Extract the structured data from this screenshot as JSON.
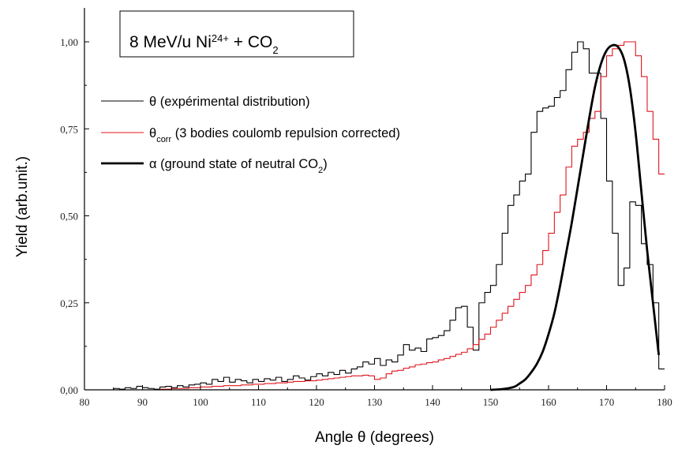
{
  "chart_data": {
    "type": "line",
    "title": {
      "prefix": "8 MeV/u Ni",
      "prefix_sup": "24+",
      "middle": " + CO",
      "middle_sub": "2"
    },
    "xlabel": "Angle θ (degrees)",
    "ylabel": "Yield (arb.unit.)",
    "xlim": [
      80,
      180
    ],
    "ylim": [
      0,
      1.0
    ],
    "x_ticks": [
      80,
      90,
      100,
      110,
      120,
      130,
      140,
      150,
      160,
      170,
      180
    ],
    "x_tick_labels": [
      "80",
      "90",
      "100",
      "110",
      "120",
      "130",
      "140",
      "150",
      "160",
      "170",
      "180"
    ],
    "y_ticks": [
      0,
      0.25,
      0.5,
      0.75,
      1.0
    ],
    "y_tick_labels": [
      "0,00",
      "0,25",
      "0,50",
      "0,75",
      "1,00"
    ],
    "grid": false,
    "legend_position": "left-upper",
    "series": [
      {
        "key": "theta",
        "color": "#000000",
        "style": "step",
        "legend": {
          "symbol": "θ",
          "sub": "",
          "text": " (expérimental distribution)"
        },
        "x": [
          80,
          81,
          82,
          83,
          84,
          85,
          86,
          87,
          88,
          89,
          90,
          91,
          92,
          93,
          94,
          95,
          96,
          97,
          98,
          99,
          100,
          101,
          102,
          103,
          104,
          105,
          106,
          107,
          108,
          109,
          110,
          111,
          112,
          113,
          114,
          115,
          116,
          117,
          118,
          119,
          120,
          121,
          122,
          123,
          124,
          125,
          126,
          127,
          128,
          129,
          130,
          131,
          132,
          133,
          134,
          135,
          136,
          137,
          138,
          139,
          140,
          141,
          142,
          143,
          144,
          145,
          146,
          147,
          148,
          149,
          150,
          151,
          152,
          153,
          154,
          155,
          156,
          157,
          158,
          159,
          160,
          161,
          162,
          163,
          164,
          165,
          166,
          167,
          168,
          169,
          170,
          171,
          172,
          173,
          174,
          175,
          176,
          177,
          178,
          179
        ],
        "y": [
          0.0,
          0.0,
          0.0,
          0.0,
          0.0,
          0.004,
          0.002,
          0.006,
          0.004,
          0.01,
          0.006,
          0.004,
          0.002,
          0.008,
          0.01,
          0.006,
          0.012,
          0.008,
          0.014,
          0.016,
          0.02,
          0.016,
          0.03,
          0.024,
          0.036,
          0.022,
          0.03,
          0.026,
          0.02,
          0.03,
          0.024,
          0.032,
          0.028,
          0.036,
          0.024,
          0.03,
          0.04,
          0.034,
          0.028,
          0.038,
          0.046,
          0.04,
          0.05,
          0.044,
          0.056,
          0.048,
          0.06,
          0.066,
          0.08,
          0.074,
          0.09,
          0.07,
          0.086,
          0.08,
          0.1,
          0.13,
          0.114,
          0.12,
          0.11,
          0.146,
          0.15,
          0.156,
          0.17,
          0.2,
          0.236,
          0.24,
          0.18,
          0.114,
          0.25,
          0.28,
          0.3,
          0.36,
          0.45,
          0.53,
          0.56,
          0.6,
          0.62,
          0.74,
          0.8,
          0.81,
          0.815,
          0.84,
          0.86,
          0.92,
          0.97,
          1.0,
          0.98,
          0.91,
          0.91,
          0.78,
          0.6,
          0.45,
          0.3,
          0.35,
          0.54,
          0.53,
          0.42,
          0.36,
          0.25,
          0.06
        ]
      },
      {
        "key": "theta_corr",
        "color": "#e0141c",
        "style": "step",
        "legend": {
          "symbol": "θ",
          "sub": "corr",
          "text": " (3 bodies coulomb repulsion corrected)"
        },
        "x": [
          80,
          81,
          82,
          83,
          84,
          85,
          86,
          87,
          88,
          89,
          90,
          91,
          92,
          93,
          94,
          95,
          96,
          97,
          98,
          99,
          100,
          101,
          102,
          103,
          104,
          105,
          106,
          107,
          108,
          109,
          110,
          111,
          112,
          113,
          114,
          115,
          116,
          117,
          118,
          119,
          120,
          121,
          122,
          123,
          124,
          125,
          126,
          127,
          128,
          129,
          130,
          131,
          132,
          133,
          134,
          135,
          136,
          137,
          138,
          139,
          140,
          141,
          142,
          143,
          144,
          145,
          146,
          147,
          148,
          149,
          150,
          151,
          152,
          153,
          154,
          155,
          156,
          157,
          158,
          159,
          160,
          161,
          162,
          163,
          164,
          165,
          166,
          167,
          168,
          169,
          170,
          171,
          172,
          173,
          174,
          175,
          176,
          177,
          178,
          179
        ],
        "y": [
          0.0,
          0.0,
          0.0,
          0.0,
          0.0,
          0.0,
          0.0,
          0.0,
          0.0,
          0.0,
          0.0,
          0.0,
          0.0,
          0.002,
          0.002,
          0.004,
          0.004,
          0.004,
          0.006,
          0.006,
          0.008,
          0.008,
          0.01,
          0.01,
          0.012,
          0.012,
          0.012,
          0.014,
          0.014,
          0.016,
          0.016,
          0.018,
          0.018,
          0.02,
          0.02,
          0.022,
          0.024,
          0.024,
          0.026,
          0.026,
          0.028,
          0.03,
          0.032,
          0.034,
          0.036,
          0.038,
          0.04,
          0.04,
          0.042,
          0.04,
          0.03,
          0.034,
          0.046,
          0.054,
          0.056,
          0.062,
          0.066,
          0.072,
          0.074,
          0.078,
          0.08,
          0.086,
          0.09,
          0.096,
          0.102,
          0.108,
          0.118,
          0.13,
          0.145,
          0.16,
          0.18,
          0.2,
          0.22,
          0.24,
          0.26,
          0.28,
          0.3,
          0.33,
          0.36,
          0.4,
          0.45,
          0.51,
          0.56,
          0.64,
          0.7,
          0.72,
          0.74,
          0.78,
          0.8,
          0.9,
          0.96,
          0.98,
          0.99,
          1.0,
          1.0,
          0.96,
          0.9,
          0.8,
          0.72,
          0.62
        ]
      },
      {
        "key": "alpha",
        "color": "#000000",
        "style": "smooth",
        "legend": {
          "symbol": "α",
          "sub": "",
          "text": " (ground state of neutral CO",
          "text_sub": "2",
          "text_end": ")"
        },
        "x": [
          150,
          152,
          154,
          155,
          156,
          157,
          158,
          159,
          160,
          161,
          162,
          163,
          164,
          165,
          166,
          167,
          168,
          169,
          170,
          171,
          172,
          173,
          174,
          175,
          176,
          177,
          178,
          179
        ],
        "y": [
          0.0,
          0.002,
          0.008,
          0.018,
          0.03,
          0.05,
          0.075,
          0.11,
          0.16,
          0.22,
          0.3,
          0.39,
          0.48,
          0.58,
          0.68,
          0.78,
          0.87,
          0.935,
          0.975,
          0.99,
          0.985,
          0.95,
          0.87,
          0.74,
          0.57,
          0.4,
          0.25,
          0.1
        ]
      }
    ]
  }
}
